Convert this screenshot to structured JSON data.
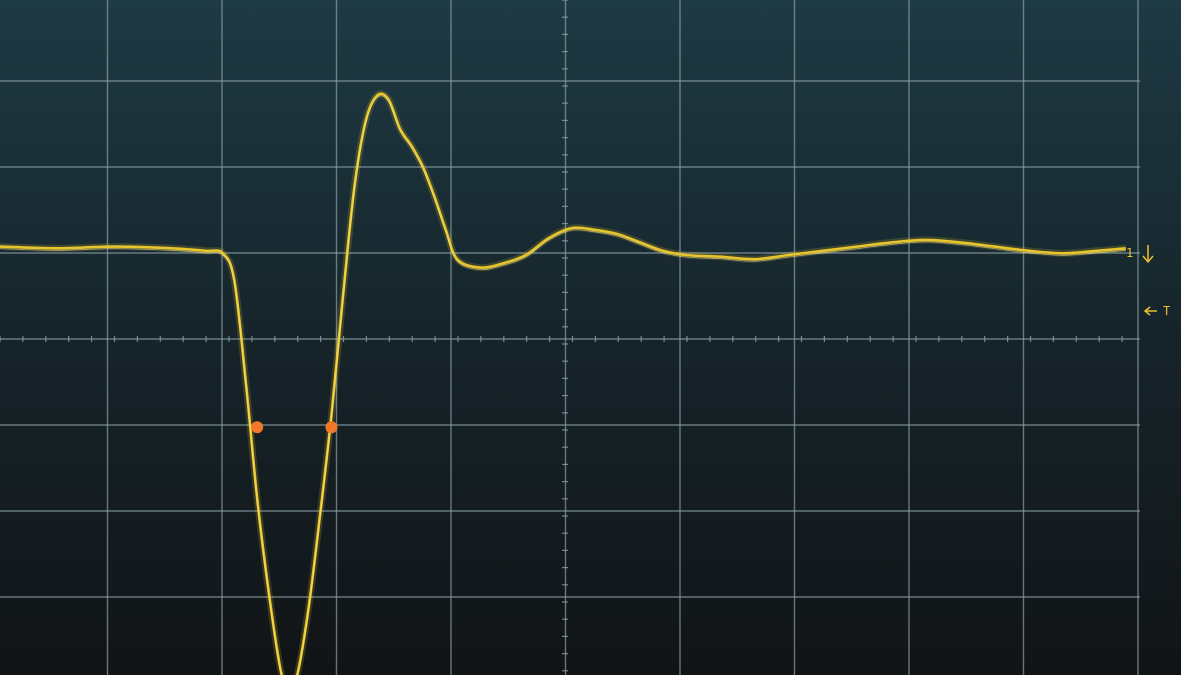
{
  "screen": {
    "background_top": "#1e3a44",
    "background_bottom": "#111416",
    "grid_color": "#8aa0a8",
    "trace_color": "#e8c52a",
    "marker_color": "#f07828"
  },
  "grid": {
    "divisions_x": 10,
    "divisions_y": 8,
    "minor_ticks_per_division": 5
  },
  "channel_marker": {
    "text": "1",
    "color": "#e8c030"
  },
  "trigger_marker": {
    "text": "T",
    "color": "#e8c030"
  },
  "waveform": {
    "units": "divisions",
    "points": [
      [
        0.0,
        1.1
      ],
      [
        0.5,
        1.08
      ],
      [
        1.0,
        1.1
      ],
      [
        1.5,
        1.08
      ],
      [
        1.8,
        1.05
      ],
      [
        1.95,
        1.02
      ],
      [
        2.05,
        0.7
      ],
      [
        2.15,
        -0.5
      ],
      [
        2.25,
        -1.9
      ],
      [
        2.35,
        -3.0
      ],
      [
        2.45,
        -3.9
      ],
      [
        2.52,
        -4.2
      ],
      [
        2.6,
        -4.0
      ],
      [
        2.7,
        -3.2
      ],
      [
        2.8,
        -2.1
      ],
      [
        2.9,
        -0.9
      ],
      [
        3.0,
        0.5
      ],
      [
        3.1,
        1.8
      ],
      [
        3.2,
        2.6
      ],
      [
        3.3,
        2.9
      ],
      [
        3.4,
        2.85
      ],
      [
        3.5,
        2.5
      ],
      [
        3.6,
        2.3
      ],
      [
        3.7,
        2.05
      ],
      [
        3.8,
        1.7
      ],
      [
        3.9,
        1.3
      ],
      [
        4.0,
        0.95
      ],
      [
        4.2,
        0.85
      ],
      [
        4.4,
        0.9
      ],
      [
        4.6,
        1.0
      ],
      [
        4.8,
        1.2
      ],
      [
        5.0,
        1.32
      ],
      [
        5.2,
        1.3
      ],
      [
        5.4,
        1.25
      ],
      [
        5.6,
        1.15
      ],
      [
        5.8,
        1.05
      ],
      [
        6.0,
        1.0
      ],
      [
        6.3,
        0.98
      ],
      [
        6.6,
        0.95
      ],
      [
        6.9,
        1.0
      ],
      [
        7.2,
        1.05
      ],
      [
        7.5,
        1.1
      ],
      [
        7.8,
        1.15
      ],
      [
        8.1,
        1.18
      ],
      [
        8.4,
        1.15
      ],
      [
        8.7,
        1.1
      ],
      [
        9.0,
        1.05
      ],
      [
        9.3,
        1.02
      ],
      [
        9.6,
        1.05
      ],
      [
        9.85,
        1.08
      ]
    ],
    "markers": [
      {
        "x": 2.25,
        "y": -1.05
      },
      {
        "x": 2.9,
        "y": -1.05
      }
    ]
  }
}
